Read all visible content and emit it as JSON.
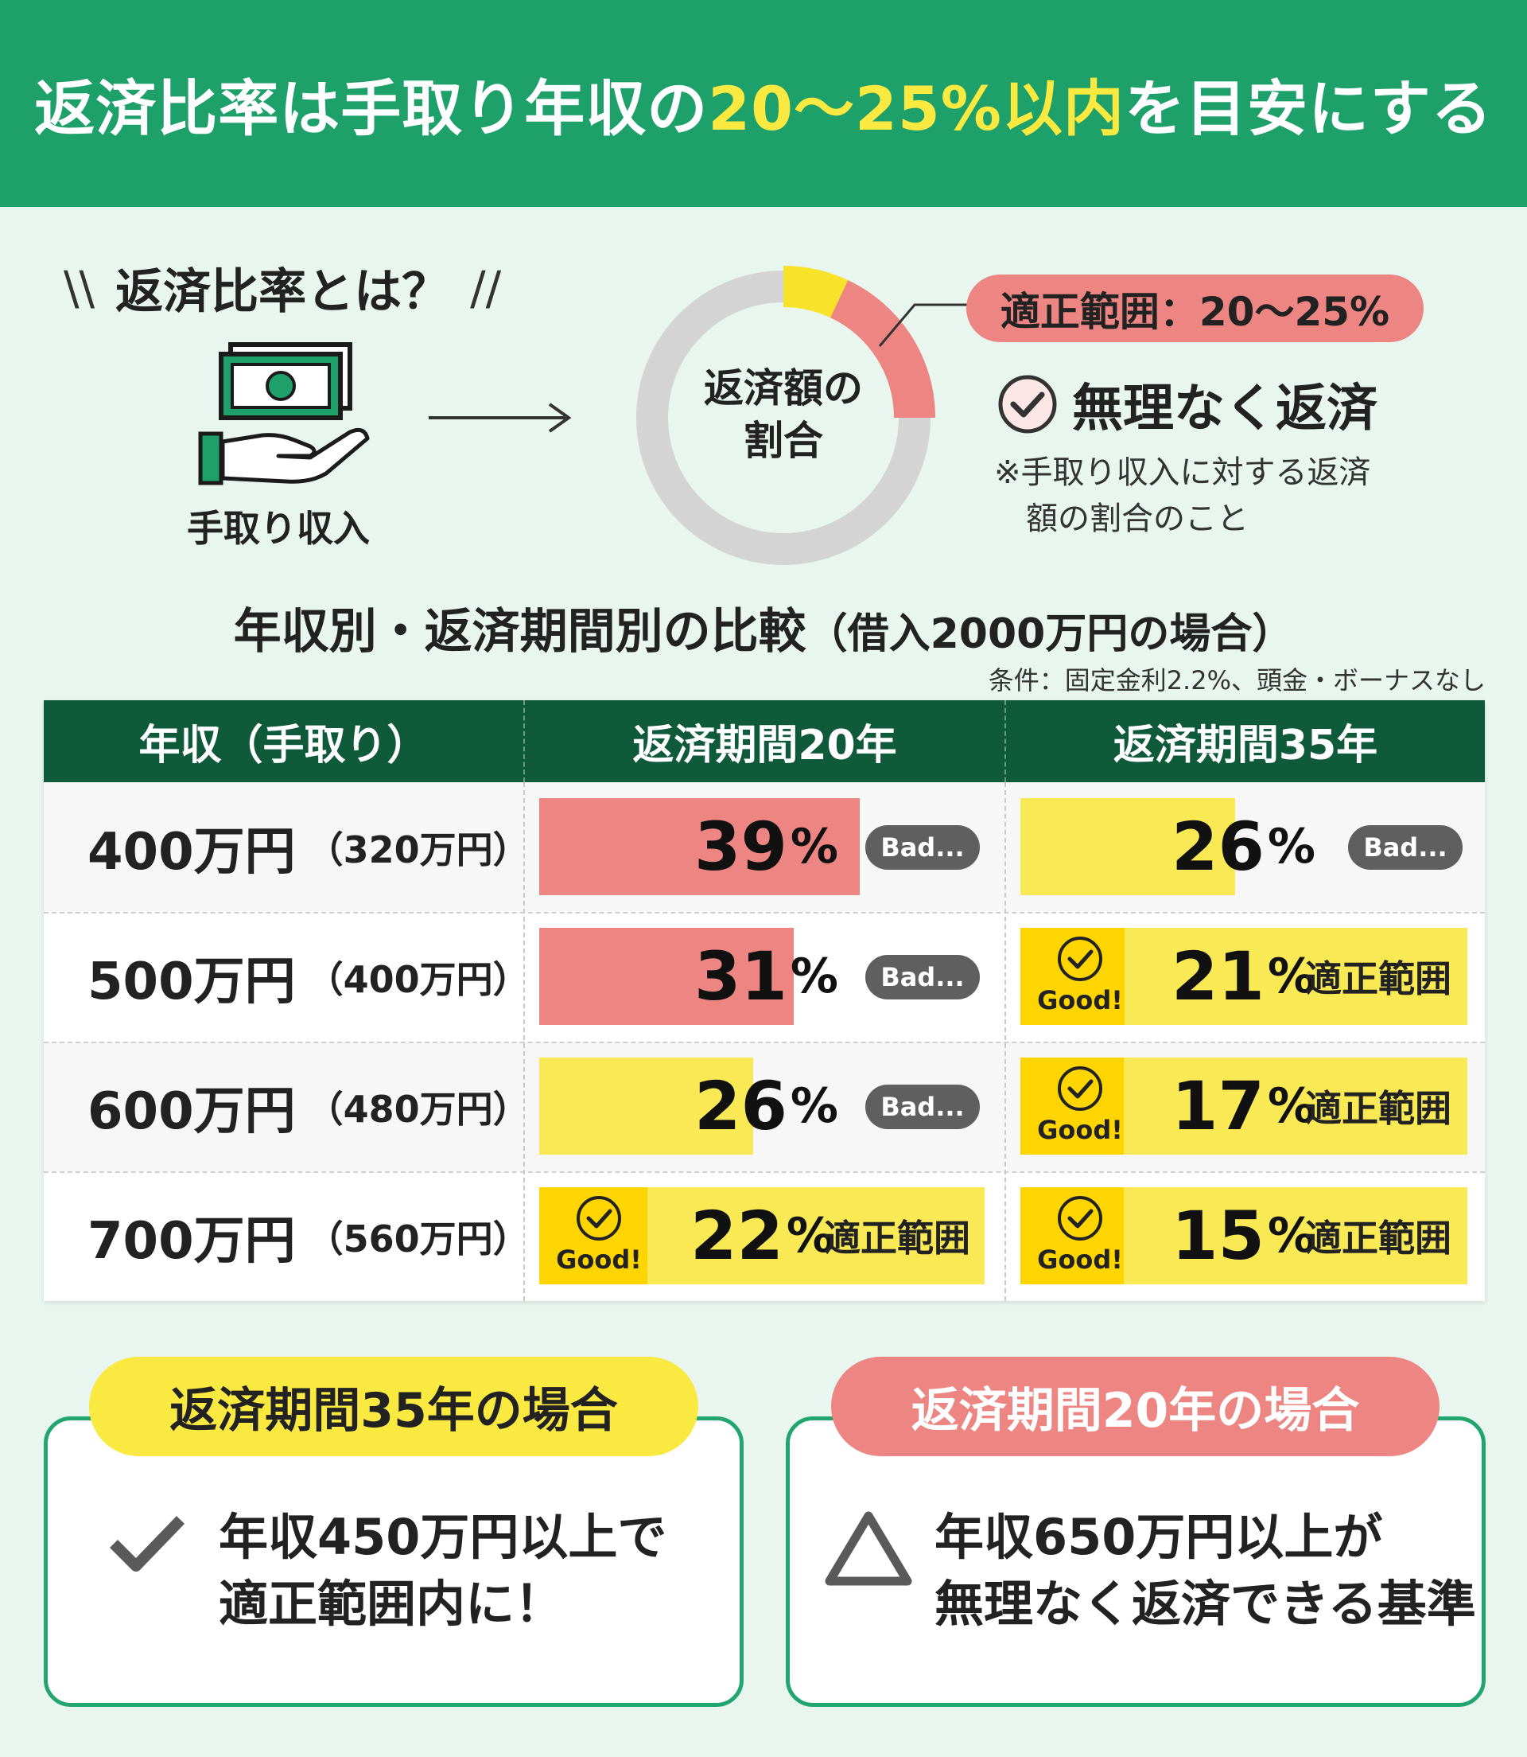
{
  "header": {
    "title_prefix": "返済比率は手取り年収の",
    "title_highlight": "20〜25%以内",
    "title_suffix": "を目安にする",
    "bg_color": "#1ea06b",
    "highlight_color": "#f9e940"
  },
  "intro": {
    "heading": "返済比率とは？",
    "slash_left": "\\\\",
    "slash_right": "//",
    "income_label": "手取り収入",
    "donut_label_line1": "返済額の",
    "donut_label_line2": "割合",
    "donut": {
      "yellow_portion": 0.07,
      "red_portion": 0.18
    },
    "range_pill": "適正範囲：20〜25%",
    "ok_label": "無理なく返済",
    "note": "※手取り収入に対する返済\n　額の割合のこと",
    "icons": [
      "money-icon",
      "hand-icon",
      "arrow-right-icon",
      "check-circle-icon"
    ]
  },
  "comparison": {
    "title": "年収別・返済期間別の比較",
    "title_sub": "（借入2000万円の場合）",
    "conditions": "条件：固定金利2.2%、頭金・ボーナスなし",
    "headers": [
      "年収（手取り）",
      "返済期間20年",
      "返済期間35年"
    ],
    "status_labels": {
      "bad": "Bad...",
      "good": "Good!",
      "range": "適正範囲"
    },
    "colors": {
      "bad_red": "#ed8583",
      "warn_yellow": "#f9ea55",
      "good_yellow": "#ffd500",
      "header_green": "#0f5a3a"
    },
    "rows": [
      {
        "income": "400万円",
        "net": "（320万円）",
        "y20": {
          "value": 39,
          "status": "bad"
        },
        "y35": {
          "value": 26,
          "status": "bad"
        }
      },
      {
        "income": "500万円",
        "net": "（400万円）",
        "y20": {
          "value": 31,
          "status": "bad"
        },
        "y35": {
          "value": 21,
          "status": "good"
        }
      },
      {
        "income": "600万円",
        "net": "（480万円）",
        "y20": {
          "value": 26,
          "status": "bad"
        },
        "y35": {
          "value": 17,
          "status": "good"
        }
      },
      {
        "income": "700万円",
        "net": "（560万円）",
        "y20": {
          "value": 22,
          "status": "good"
        },
        "y35": {
          "value": 15,
          "status": "good"
        }
      }
    ]
  },
  "cards": [
    {
      "tag": "返済期間35年の場合",
      "text": "年収450万円以上で\n適正範囲内に！",
      "icon": "checkmark-icon",
      "tag_color": "#f9e940"
    },
    {
      "tag": "返済期間20年の場合",
      "text": "年収650万円以上が\n無理なく返済できる基準",
      "icon": "triangle-icon",
      "tag_color": "#ed8583"
    }
  ]
}
